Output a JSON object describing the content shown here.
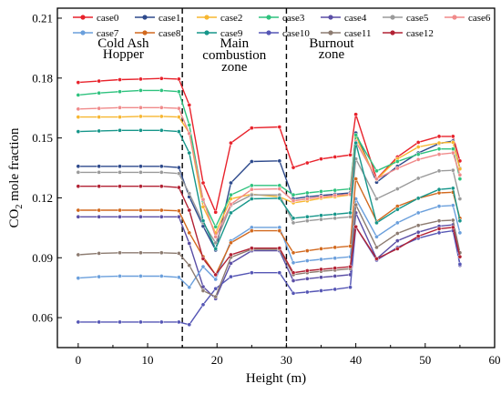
{
  "chart_data": {
    "type": "line",
    "title": "",
    "xlabel": "Height (m)",
    "ylabel": "CO₂ mole fraction",
    "ylabel_main": "CO",
    "ylabel_sub": "2",
    "ylabel_rest": " mole fraction",
    "xlim": [
      -3,
      60
    ],
    "ylim": [
      0.045,
      0.215
    ],
    "xticks": [
      0,
      10,
      20,
      30,
      40,
      50,
      60
    ],
    "yticks": [
      0.06,
      0.09,
      0.12,
      0.15,
      0.18,
      0.21
    ],
    "ytick_labels": [
      "0.06",
      "0.09",
      "0.12",
      "0.15",
      "0.18",
      "0.21"
    ],
    "grid": false,
    "legend_position": "top",
    "zone_dividers": [
      15,
      30
    ],
    "zones": [
      {
        "lines": [
          "Cold Ash",
          "Hopper"
        ],
        "x": 6.5,
        "y": [
          0.1955,
          0.19
        ]
      },
      {
        "lines": [
          "Main",
          "combustion",
          "zone"
        ],
        "x": 22.5,
        "y": [
          0.1955,
          0.1895,
          0.1835
        ]
      },
      {
        "lines": [
          "Burnout",
          "zone"
        ],
        "x": 36.5,
        "y": [
          0.1955,
          0.19
        ]
      }
    ],
    "series": [
      {
        "name": "case0",
        "color": "#e8222b",
        "values": [
          0.1778,
          0.1785,
          0.1792,
          0.1795,
          0.1798,
          0.1795,
          0.1665,
          0.1275,
          0.1128,
          0.1475,
          0.155,
          0.1555,
          0.1352,
          0.1375,
          0.1395,
          0.1405,
          0.1415,
          0.1618,
          0.1295,
          0.1405,
          0.1478,
          0.1508,
          0.1508,
          0.1385
        ]
      },
      {
        "name": "case1",
        "color": "#2e4a8c",
        "values": [
          0.1358,
          0.1358,
          0.1358,
          0.1358,
          0.1358,
          0.1352,
          0.1205,
          0.1058,
          0.0938,
          0.1275,
          0.1382,
          0.1385,
          0.1195,
          0.1205,
          0.1212,
          0.1218,
          0.1225,
          0.1525,
          0.1278,
          0.1358,
          0.1425,
          0.1472,
          0.1485,
          0.1348
        ]
      },
      {
        "name": "case2",
        "color": "#f7b731",
        "values": [
          0.1605,
          0.1605,
          0.1605,
          0.1608,
          0.1608,
          0.1605,
          0.1525,
          0.1155,
          0.1025,
          0.1195,
          0.1218,
          0.1205,
          0.1175,
          0.1185,
          0.1198,
          0.1205,
          0.1215,
          0.1505,
          0.1292,
          0.1395,
          0.1455,
          0.1475,
          0.1478,
          0.1345
        ]
      },
      {
        "name": "case3",
        "color": "#2ec27e",
        "values": [
          0.1715,
          0.1725,
          0.1732,
          0.1738,
          0.1738,
          0.1732,
          0.1565,
          0.1185,
          0.1055,
          0.1215,
          0.1262,
          0.1262,
          0.1215,
          0.1225,
          0.1232,
          0.1238,
          0.1245,
          0.1515,
          0.1335,
          0.1382,
          0.1418,
          0.1445,
          0.1445,
          0.1295
        ]
      },
      {
        "name": "case4",
        "color": "#5b4fa6",
        "values": [
          0.1105,
          0.1105,
          0.1105,
          0.1105,
          0.1105,
          0.1105,
          0.0972,
          0.0755,
          0.0695,
          0.0872,
          0.0935,
          0.0935,
          0.0785,
          0.0795,
          0.0802,
          0.0808,
          0.0815,
          0.1125,
          0.0895,
          0.0985,
          0.1028,
          0.1058,
          0.1065,
          0.0862
        ]
      },
      {
        "name": "case5",
        "color": "#9a9a9a",
        "values": [
          0.1328,
          0.1328,
          0.1328,
          0.1328,
          0.1328,
          0.1322,
          0.1222,
          0.1075,
          0.0975,
          0.1162,
          0.1215,
          0.1215,
          0.1075,
          0.1085,
          0.1092,
          0.1098,
          0.1105,
          0.1395,
          0.1195,
          0.1245,
          0.1298,
          0.1335,
          0.1338,
          0.1195
        ]
      },
      {
        "name": "case6",
        "color": "#f08a8a",
        "values": [
          0.1645,
          0.1648,
          0.1652,
          0.1652,
          0.1652,
          0.1648,
          0.1522,
          0.1192,
          0.1005,
          0.1168,
          0.1242,
          0.1245,
          0.1185,
          0.1195,
          0.1205,
          0.1212,
          0.1218,
          0.1482,
          0.1295,
          0.1348,
          0.1392,
          0.1418,
          0.1425,
          0.1315
        ]
      },
      {
        "name": "case7",
        "color": "#6a9fdc",
        "values": [
          0.0798,
          0.0805,
          0.0808,
          0.0808,
          0.0808,
          0.0802,
          0.0752,
          0.0855,
          0.0792,
          0.0985,
          0.1052,
          0.1052,
          0.0875,
          0.0885,
          0.0892,
          0.0898,
          0.0905,
          0.1195,
          0.1005,
          0.1075,
          0.1125,
          0.1158,
          0.1162,
          0.1025
        ]
      },
      {
        "name": "case8",
        "color": "#d2691e",
        "values": [
          0.1138,
          0.1138,
          0.1138,
          0.1138,
          0.1138,
          0.1135,
          0.1025,
          0.0905,
          0.0815,
          0.0975,
          0.1035,
          0.1035,
          0.0925,
          0.0935,
          0.0945,
          0.0952,
          0.0958,
          0.1295,
          0.1082,
          0.1158,
          0.1198,
          0.1225,
          0.1228,
          0.1098
        ]
      },
      {
        "name": "case9",
        "color": "#16968a",
        "values": [
          0.1532,
          0.1535,
          0.1538,
          0.1538,
          0.1538,
          0.1532,
          0.1425,
          0.1085,
          0.0945,
          0.1125,
          0.1195,
          0.1198,
          0.1098,
          0.1105,
          0.1112,
          0.1118,
          0.1125,
          0.1475,
          0.1075,
          0.1142,
          0.1198,
          0.1242,
          0.1248,
          0.1085
        ]
      },
      {
        "name": "case10",
        "color": "#5556b5",
        "values": [
          0.0578,
          0.0578,
          0.0578,
          0.0578,
          0.0578,
          0.0578,
          0.0565,
          0.0665,
          0.0745,
          0.0805,
          0.0825,
          0.0825,
          0.0722,
          0.0728,
          0.0735,
          0.0742,
          0.0752,
          0.1055,
          0.0888,
          0.0952,
          0.0998,
          0.1025,
          0.1035,
          0.0868
        ]
      },
      {
        "name": "case11",
        "color": "#8c7b70",
        "values": [
          0.0915,
          0.0922,
          0.0925,
          0.0925,
          0.0925,
          0.0922,
          0.0862,
          0.0735,
          0.0705,
          0.0902,
          0.0942,
          0.0942,
          0.0815,
          0.0825,
          0.0832,
          0.0838,
          0.0845,
          0.1165,
          0.0952,
          0.1022,
          0.1062,
          0.1085,
          0.1088,
          0.0925
        ]
      },
      {
        "name": "case12",
        "color": "#b22234",
        "values": [
          0.1258,
          0.1258,
          0.1258,
          0.1258,
          0.1258,
          0.1252,
          0.1138,
          0.0895,
          0.0815,
          0.0915,
          0.0948,
          0.0948,
          0.0825,
          0.0835,
          0.0842,
          0.0848,
          0.0855,
          0.1055,
          0.0895,
          0.0945,
          0.1008,
          0.1045,
          0.1052,
          0.0905
        ]
      }
    ],
    "x": [
      0,
      3,
      6,
      9,
      12,
      14.5,
      16,
      18,
      19.8,
      22,
      25,
      29,
      31,
      33,
      35,
      37,
      39.2,
      40,
      43,
      46,
      49,
      52,
      54,
      55
    ]
  }
}
